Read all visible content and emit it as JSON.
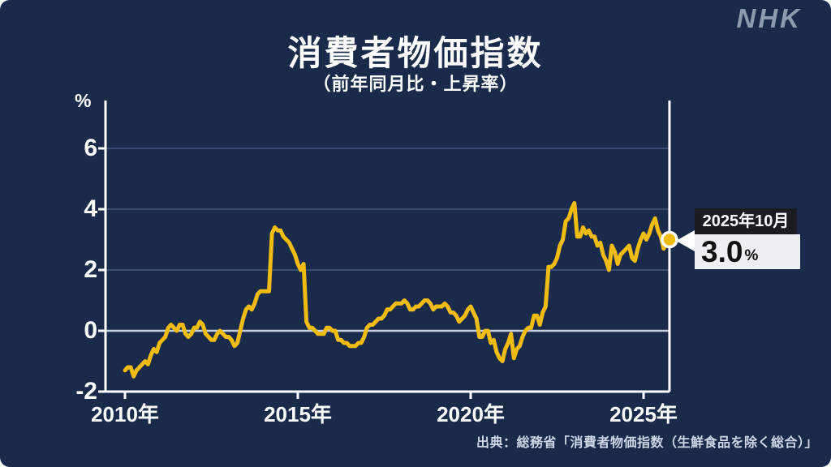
{
  "page": {
    "background": "#1a2a4a"
  },
  "branding": {
    "logo": "NHK",
    "logo_color": "#8c9aae"
  },
  "header": {
    "title": "消費者物価指数",
    "subtitle": "（前年同月比・上昇率）"
  },
  "callout": {
    "date": "2025年10月",
    "value": "3.0",
    "unit": "%"
  },
  "source": {
    "text": "出典：総務省「消費者物価指数（生鮮食品を除く総合）」"
  },
  "chart_data": {
    "type": "line",
    "title": "消費者物価指数",
    "subtitle": "（前年同月比・上昇率）",
    "ylabel": "%",
    "ylim": [
      -2,
      7.6
    ],
    "xlim": [
      2009.4,
      2025.85
    ],
    "yticks": [
      {
        "value": 6,
        "label": "6"
      },
      {
        "value": 4,
        "label": "4"
      },
      {
        "value": 2,
        "label": "2"
      },
      {
        "value": 0,
        "label": "0"
      },
      {
        "value": -2,
        "label": "-2"
      }
    ],
    "xticks": [
      {
        "year": 2010,
        "label": "2010年"
      },
      {
        "year": 2015,
        "label": "2015年"
      },
      {
        "year": 2020,
        "label": "2020年"
      },
      {
        "year": 2025,
        "label": "2025年"
      }
    ],
    "grid": "horizontal",
    "legend": "none",
    "line_color": "#f1bc10",
    "zero_line_color": "#c5d0de",
    "grid_color": "#41587c",
    "axis_color": "#ffffff",
    "series_name": "消費者物価指数（生鮮食品を除く総合）前年同月比",
    "monthly_values": {
      "2010": [
        -1.3,
        -1.2,
        -1.2,
        -1.5,
        -1.3,
        -1.2,
        -1.1,
        -1.0,
        -1.1,
        -0.8,
        -0.6,
        -0.7
      ],
      "2011": [
        -0.4,
        -0.3,
        -0.2,
        0.1,
        0.2,
        0.1,
        0.0,
        0.2,
        0.2,
        -0.1,
        -0.2,
        -0.1
      ],
      "2012": [
        0.1,
        0.1,
        0.3,
        0.2,
        -0.1,
        -0.2,
        -0.3,
        -0.3,
        -0.1,
        0.0,
        -0.1,
        -0.2
      ],
      "2013": [
        -0.2,
        -0.3,
        -0.5,
        -0.4,
        0.0,
        0.4,
        0.7,
        0.8,
        0.7,
        0.9,
        1.2,
        1.3
      ],
      "2014": [
        1.3,
        1.3,
        1.3,
        3.2,
        3.4,
        3.3,
        3.3,
        3.1,
        3.0,
        2.9,
        2.7,
        2.5
      ],
      "2015": [
        2.2,
        2.0,
        2.2,
        0.3,
        0.1,
        0.1,
        0.0,
        -0.1,
        -0.1,
        -0.1,
        0.1,
        0.1
      ],
      "2016": [
        0.0,
        0.0,
        -0.3,
        -0.3,
        -0.4,
        -0.4,
        -0.5,
        -0.5,
        -0.5,
        -0.4,
        -0.4,
        -0.2
      ],
      "2017": [
        0.1,
        0.2,
        0.2,
        0.3,
        0.4,
        0.4,
        0.5,
        0.7,
        0.7,
        0.8,
        0.9,
        0.9
      ],
      "2018": [
        0.9,
        1.0,
        0.9,
        0.7,
        0.7,
        0.8,
        0.8,
        0.9,
        1.0,
        1.0,
        0.9,
        0.7
      ],
      "2019": [
        0.8,
        0.8,
        0.8,
        0.9,
        0.8,
        0.6,
        0.6,
        0.5,
        0.3,
        0.4,
        0.5,
        0.7
      ],
      "2020": [
        0.8,
        0.6,
        0.4,
        -0.2,
        -0.2,
        0.0,
        0.0,
        -0.4,
        -0.3,
        -0.7,
        -0.9,
        -1.0
      ],
      "2021": [
        -0.6,
        -0.4,
        -0.1,
        -0.9,
        -0.6,
        -0.5,
        -0.2,
        0.0,
        0.1,
        0.1,
        0.5,
        0.5
      ],
      "2022": [
        0.2,
        0.6,
        0.8,
        2.1,
        2.1,
        2.2,
        2.4,
        2.8,
        3.0,
        3.6,
        3.7,
        4.0
      ],
      "2023": [
        4.2,
        3.1,
        3.1,
        3.4,
        3.2,
        3.3,
        3.1,
        3.1,
        2.8,
        2.9,
        2.5,
        2.3
      ],
      "2024": [
        2.0,
        2.8,
        2.6,
        2.2,
        2.5,
        2.6,
        2.7,
        2.8,
        2.4,
        2.3,
        2.7,
        3.0
      ],
      "2025": [
        3.2,
        3.0,
        3.2,
        3.5,
        3.7,
        3.3,
        3.1,
        2.7,
        2.9,
        3.0
      ]
    },
    "latest": {
      "date_label": "2025年10月",
      "value": 3.0
    }
  }
}
